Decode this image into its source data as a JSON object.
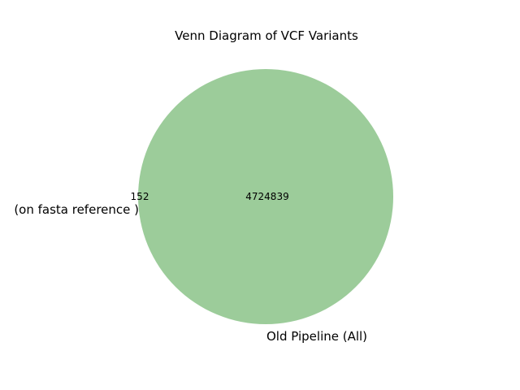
{
  "chart_data": {
    "type": "venn",
    "title": "Venn Diagram of VCF Variants",
    "sets": [
      {
        "label": "(on fasta reference )",
        "only_count": "152",
        "color": "#2ca02c"
      },
      {
        "label": "Old Pipeline (All)",
        "only_count": "",
        "color": "#2ca02c"
      }
    ],
    "intersection_count": "4724839",
    "fill_color": "#9ccc9a",
    "background_color": "#ffffff"
  }
}
